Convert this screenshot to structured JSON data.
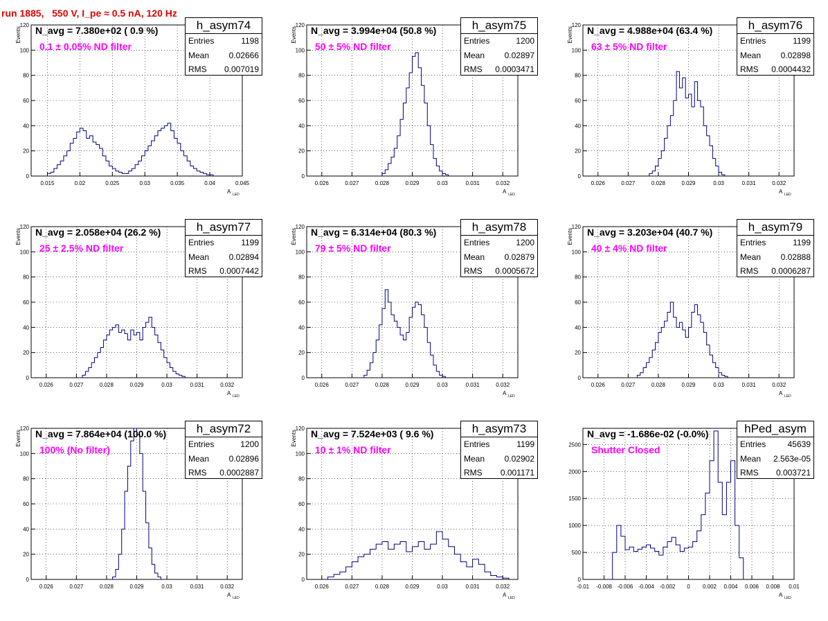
{
  "page_title": "run 1885,   550 V, I_pe ≈ 0.5 nA, 120 Hz",
  "colors": {
    "title": "#e00000",
    "histogram_line": "#000080",
    "filter_label": "#ff00ff",
    "grid": "#000000"
  },
  "chart_data": [
    {
      "type": "histogram",
      "hist_name": "h_asym74",
      "annotation": "N_avg = 7.380e+02 ( 0.9 %)",
      "filter_label": "0.1 ± 0.05% ND filter",
      "stats": {
        "entries_label": "Entries",
        "entries": "1198",
        "mean_label": "Mean",
        "mean": "0.02666",
        "rms_label": "RMS",
        "rms": "0.007019"
      },
      "xlabel": "A",
      "xlabel_sub": "LED",
      "ylabel": "Events",
      "xlim": [
        0.0125,
        0.045
      ],
      "ylim": [
        0,
        120
      ],
      "xticks": [
        0.015,
        0.02,
        0.025,
        0.03,
        0.035,
        0.04,
        0.045
      ],
      "xtick_labels": [
        "0.015",
        "0.02",
        "0.025",
        "0.03",
        "0.035",
        "0.04",
        "0.045"
      ],
      "yticks": [
        0,
        20,
        40,
        60,
        80,
        100,
        120
      ],
      "ytick_labels": [
        "0",
        "20",
        "40",
        "60",
        "80",
        "100",
        "120"
      ],
      "x": [
        0.015,
        0.0155,
        0.016,
        0.0165,
        0.017,
        0.0175,
        0.018,
        0.0185,
        0.019,
        0.0195,
        0.02,
        0.0205,
        0.021,
        0.0215,
        0.022,
        0.0225,
        0.023,
        0.0235,
        0.024,
        0.0245,
        0.025,
        0.0255,
        0.026,
        0.0265,
        0.027,
        0.0275,
        0.028,
        0.0285,
        0.029,
        0.0295,
        0.03,
        0.0305,
        0.031,
        0.0315,
        0.032,
        0.0325,
        0.033,
        0.0335,
        0.034,
        0.0345,
        0.035,
        0.0355,
        0.036,
        0.0365,
        0.037,
        0.0375,
        0.038,
        0.0385,
        0.039,
        0.0395,
        0.04
      ],
      "values": [
        2,
        3,
        6,
        9,
        12,
        16,
        20,
        26,
        30,
        35,
        38,
        36,
        30,
        32,
        27,
        25,
        22,
        16,
        12,
        8,
        6,
        4,
        3,
        2,
        2,
        4,
        6,
        9,
        12,
        16,
        20,
        24,
        28,
        32,
        36,
        38,
        40,
        42,
        36,
        30,
        26,
        20,
        16,
        12,
        8,
        6,
        4,
        3,
        2,
        1,
        1
      ]
    },
    {
      "type": "histogram",
      "hist_name": "h_asym75",
      "annotation": "N_avg = 3.994e+04 (50.8 %)",
      "filter_label": "50 ± 5% ND filter",
      "stats": {
        "entries_label": "Entries",
        "entries": "1200",
        "mean_label": "Mean",
        "mean": "0.02897",
        "rms_label": "RMS",
        "rms": "0.0003471"
      },
      "xlabel": "A",
      "xlabel_sub": "LED",
      "ylabel": "Events",
      "xlim": [
        0.0255,
        0.0325
      ],
      "ylim": [
        0,
        120
      ],
      "xticks": [
        0.026,
        0.027,
        0.028,
        0.029,
        0.03,
        0.031,
        0.032
      ],
      "xtick_labels": [
        "0.026",
        "0.027",
        "0.028",
        "0.029",
        "0.03",
        "0.031",
        "0.032"
      ],
      "yticks": [
        0,
        20,
        40,
        60,
        80,
        100,
        120
      ],
      "ytick_labels": [
        "0",
        "20",
        "40",
        "60",
        "80",
        "100",
        "120"
      ],
      "x": [
        0.028,
        0.0281,
        0.0282,
        0.0283,
        0.0284,
        0.0285,
        0.0286,
        0.0287,
        0.0288,
        0.0289,
        0.029,
        0.0291,
        0.0292,
        0.0293,
        0.0294,
        0.0295,
        0.0296,
        0.0297,
        0.0298,
        0.0299,
        0.03,
        0.0301
      ],
      "values": [
        2,
        5,
        10,
        15,
        22,
        32,
        45,
        58,
        70,
        82,
        95,
        98,
        86,
        72,
        58,
        40,
        25,
        14,
        8,
        4,
        2,
        1
      ]
    },
    {
      "type": "histogram",
      "hist_name": "h_asym76",
      "annotation": "N_avg = 4.988e+04 (63.4 %)",
      "filter_label": "63 ± 5% ND filter",
      "stats": {
        "entries_label": "Entries",
        "entries": "1199",
        "mean_label": "Mean",
        "mean": "0.02898",
        "rms_label": "RMS",
        "rms": "0.0004432"
      },
      "xlabel": "A",
      "xlabel_sub": "LED",
      "ylabel": "Events",
      "xlim": [
        0.0255,
        0.0325
      ],
      "ylim": [
        0,
        120
      ],
      "xticks": [
        0.026,
        0.027,
        0.028,
        0.029,
        0.03,
        0.031,
        0.032
      ],
      "xtick_labels": [
        "0.026",
        "0.027",
        "0.028",
        "0.029",
        "0.03",
        "0.031",
        "0.032"
      ],
      "yticks": [
        0,
        20,
        40,
        60,
        80,
        100,
        120
      ],
      "ytick_labels": [
        "0",
        "20",
        "40",
        "60",
        "80",
        "100",
        "120"
      ],
      "x": [
        0.0277,
        0.0278,
        0.0279,
        0.028,
        0.0281,
        0.0282,
        0.0283,
        0.0284,
        0.0285,
        0.0286,
        0.0287,
        0.0288,
        0.0289,
        0.029,
        0.0291,
        0.0292,
        0.0293,
        0.0294,
        0.0295,
        0.0296,
        0.0297,
        0.0298,
        0.0299,
        0.03,
        0.0301
      ],
      "values": [
        2,
        4,
        8,
        14,
        20,
        30,
        40,
        48,
        60,
        83,
        70,
        78,
        62,
        65,
        55,
        75,
        60,
        55,
        40,
        32,
        24,
        14,
        8,
        3,
        1
      ]
    },
    {
      "type": "histogram",
      "hist_name": "h_asym77",
      "annotation": "N_avg = 2.058e+04 (26.2 %)",
      "filter_label": "25 ± 2.5% ND filter",
      "stats": {
        "entries_label": "Entries",
        "entries": "1199",
        "mean_label": "Mean",
        "mean": "0.02894",
        "rms_label": "RMS",
        "rms": "0.0007442"
      },
      "xlabel": "A",
      "xlabel_sub": "LED",
      "ylabel": "Events",
      "xlim": [
        0.0255,
        0.0325
      ],
      "ylim": [
        0,
        120
      ],
      "xticks": [
        0.026,
        0.027,
        0.028,
        0.029,
        0.03,
        0.031,
        0.032
      ],
      "xtick_labels": [
        "0.026",
        "0.027",
        "0.028",
        "0.029",
        "0.03",
        "0.031",
        "0.032"
      ],
      "yticks": [
        0,
        20,
        40,
        60,
        80,
        100,
        120
      ],
      "ytick_labels": [
        "0",
        "20",
        "40",
        "60",
        "80",
        "100",
        "120"
      ],
      "x": [
        0.0272,
        0.0273,
        0.0274,
        0.0275,
        0.0276,
        0.0277,
        0.0278,
        0.0279,
        0.028,
        0.0281,
        0.0282,
        0.0283,
        0.0284,
        0.0285,
        0.0286,
        0.0287,
        0.0288,
        0.0289,
        0.029,
        0.0291,
        0.0292,
        0.0293,
        0.0294,
        0.0295,
        0.0296,
        0.0297,
        0.0298,
        0.0299,
        0.03,
        0.0301,
        0.0302,
        0.0303,
        0.0304,
        0.0305
      ],
      "values": [
        2,
        5,
        8,
        12,
        16,
        20,
        24,
        30,
        34,
        38,
        40,
        42,
        36,
        38,
        35,
        30,
        38,
        34,
        36,
        30,
        40,
        44,
        48,
        40,
        34,
        28,
        22,
        16,
        12,
        8,
        5,
        3,
        2,
        1
      ]
    },
    {
      "type": "histogram",
      "hist_name": "h_asym78",
      "annotation": "N_avg = 6.314e+04 (80.3 %)",
      "filter_label": "79 ± 5% ND filter",
      "stats": {
        "entries_label": "Entries",
        "entries": "1200",
        "mean_label": "Mean",
        "mean": "0.02879",
        "rms_label": "RMS",
        "rms": "0.0005672"
      },
      "xlabel": "A",
      "xlabel_sub": "LED",
      "ylabel": "Events",
      "xlim": [
        0.0255,
        0.0325
      ],
      "ylim": [
        0,
        120
      ],
      "xticks": [
        0.026,
        0.027,
        0.028,
        0.029,
        0.03,
        0.031,
        0.032
      ],
      "xtick_labels": [
        "0.026",
        "0.027",
        "0.028",
        "0.029",
        "0.03",
        "0.031",
        "0.032"
      ],
      "yticks": [
        0,
        20,
        40,
        60,
        80,
        100,
        120
      ],
      "ytick_labels": [
        "0",
        "20",
        "40",
        "60",
        "80",
        "100",
        "120"
      ],
      "x": [
        0.0274,
        0.0275,
        0.0276,
        0.0277,
        0.0278,
        0.0279,
        0.028,
        0.0281,
        0.0282,
        0.0283,
        0.0284,
        0.0285,
        0.0286,
        0.0287,
        0.0288,
        0.0289,
        0.029,
        0.0291,
        0.0292,
        0.0293,
        0.0294,
        0.0295,
        0.0296,
        0.0297,
        0.0298,
        0.0299,
        0.03
      ],
      "values": [
        2,
        6,
        12,
        20,
        30,
        42,
        55,
        70,
        60,
        50,
        45,
        40,
        34,
        30,
        36,
        48,
        56,
        60,
        58,
        50,
        40,
        28,
        18,
        10,
        5,
        2,
        1
      ]
    },
    {
      "type": "histogram",
      "hist_name": "h_asym79",
      "annotation": "N_avg = 3.203e+04 (40.7 %)",
      "filter_label": "40 ± 4% ND filter",
      "stats": {
        "entries_label": "Entries",
        "entries": "1199",
        "mean_label": "Mean",
        "mean": "0.02888",
        "rms_label": "RMS",
        "rms": "0.0006287"
      },
      "xlabel": "A",
      "xlabel_sub": "LED",
      "ylabel": "Events",
      "xlim": [
        0.0255,
        0.0325
      ],
      "ylim": [
        0,
        120
      ],
      "xticks": [
        0.026,
        0.027,
        0.028,
        0.029,
        0.03,
        0.031,
        0.032
      ],
      "xtick_labels": [
        "0.026",
        "0.027",
        "0.028",
        "0.029",
        "0.03",
        "0.031",
        "0.032"
      ],
      "yticks": [
        0,
        20,
        40,
        60,
        80,
        100,
        120
      ],
      "ytick_labels": [
        "0",
        "20",
        "40",
        "60",
        "80",
        "100",
        "120"
      ],
      "x": [
        0.0273,
        0.0274,
        0.0275,
        0.0276,
        0.0277,
        0.0278,
        0.0279,
        0.028,
        0.0281,
        0.0282,
        0.0283,
        0.0284,
        0.0285,
        0.0286,
        0.0287,
        0.0288,
        0.0289,
        0.029,
        0.0291,
        0.0292,
        0.0293,
        0.0294,
        0.0295,
        0.0296,
        0.0297,
        0.0298,
        0.0299,
        0.03,
        0.0301,
        0.0302
      ],
      "values": [
        2,
        4,
        8,
        12,
        16,
        22,
        28,
        36,
        40,
        45,
        52,
        60,
        48,
        40,
        44,
        38,
        32,
        40,
        52,
        58,
        50,
        44,
        36,
        26,
        18,
        12,
        8,
        4,
        2,
        1
      ]
    },
    {
      "type": "histogram",
      "hist_name": "h_asym72",
      "annotation": "N_avg = 7.864e+04 (100.0 %)",
      "filter_label": "100% (No filter)",
      "stats": {
        "entries_label": "Entries",
        "entries": "1200",
        "mean_label": "Mean",
        "mean": "0.02896",
        "rms_label": "RMS",
        "rms": "0.0002887"
      },
      "xlabel": "A",
      "xlabel_sub": "LED",
      "ylabel": "Events",
      "xlim": [
        0.0255,
        0.0325
      ],
      "ylim": [
        0,
        120
      ],
      "xticks": [
        0.026,
        0.027,
        0.028,
        0.029,
        0.03,
        0.031,
        0.032
      ],
      "xtick_labels": [
        "0.026",
        "0.027",
        "0.028",
        "0.029",
        "0.03",
        "0.031",
        "0.032"
      ],
      "yticks": [
        0,
        20,
        40,
        60,
        80,
        100,
        120
      ],
      "ytick_labels": [
        "0",
        "20",
        "40",
        "60",
        "80",
        "100",
        "120"
      ],
      "x": [
        0.0282,
        0.0283,
        0.0284,
        0.0285,
        0.0286,
        0.0287,
        0.0288,
        0.0289,
        0.029,
        0.0291,
        0.0292,
        0.0293,
        0.0294,
        0.0295,
        0.0296,
        0.0297
      ],
      "values": [
        2,
        8,
        20,
        40,
        70,
        90,
        110,
        125,
        115,
        100,
        70,
        45,
        25,
        12,
        5,
        2
      ]
    },
    {
      "type": "histogram",
      "hist_name": "h_asym73",
      "annotation": "N_avg = 7.524e+03 ( 9.6 %)",
      "filter_label": "10 ± 1% ND filter",
      "stats": {
        "entries_label": "Entries",
        "entries": "1199",
        "mean_label": "Mean",
        "mean": "0.02902",
        "rms_label": "RMS",
        "rms": "0.001171"
      },
      "xlabel": "A",
      "xlabel_sub": "LED",
      "ylabel": "Events",
      "xlim": [
        0.0255,
        0.0325
      ],
      "ylim": [
        0,
        120
      ],
      "xticks": [
        0.026,
        0.027,
        0.028,
        0.029,
        0.03,
        0.031,
        0.032
      ],
      "xtick_labels": [
        "0.026",
        "0.027",
        "0.028",
        "0.029",
        "0.03",
        "0.031",
        "0.032"
      ],
      "yticks": [
        0,
        20,
        40,
        60,
        80,
        100,
        120
      ],
      "ytick_labels": [
        "0",
        "20",
        "40",
        "60",
        "80",
        "100",
        "120"
      ],
      "x": [
        0.0262,
        0.0264,
        0.0266,
        0.0268,
        0.027,
        0.0272,
        0.0274,
        0.0276,
        0.0278,
        0.028,
        0.0282,
        0.0284,
        0.0286,
        0.0288,
        0.029,
        0.0292,
        0.0294,
        0.0296,
        0.0298,
        0.03,
        0.0302,
        0.0304,
        0.0306,
        0.0308,
        0.031,
        0.0312,
        0.0314,
        0.0316,
        0.0318,
        0.032
      ],
      "values": [
        2,
        4,
        6,
        10,
        14,
        18,
        20,
        24,
        28,
        30,
        24,
        28,
        30,
        22,
        26,
        30,
        24,
        28,
        38,
        32,
        26,
        20,
        14,
        10,
        16,
        12,
        6,
        3,
        2,
        1
      ]
    },
    {
      "type": "histogram",
      "hist_name": "hPed_asym",
      "annotation": "N_avg = -1.686e-02 (-0.0%)",
      "filter_label": "Shutter Closed",
      "stats": {
        "entries_label": "Entries",
        "entries": "45639",
        "mean_label": "Mean",
        "mean": "2.563e-05",
        "rms_label": "RMS",
        "rms": "0.003721"
      },
      "xlabel": "A",
      "xlabel_sub": "LED",
      "ylabel": "",
      "xlim": [
        -0.01,
        0.01
      ],
      "ylim": [
        0,
        2800
      ],
      "xticks": [
        -0.01,
        -0.008,
        -0.006,
        -0.004,
        -0.002,
        0,
        0.002,
        0.004,
        0.006,
        0.008,
        0.01
      ],
      "xtick_labels": [
        "-0.01",
        "-0.008",
        "-0.006",
        "-0.004",
        "-0.002",
        "0",
        "0.002",
        "0.004",
        "0.006",
        "0.008",
        "0.01"
      ],
      "yticks": [
        0,
        500,
        1000,
        1500,
        2000,
        2500
      ],
      "ytick_labels": [
        "0",
        "500",
        "1000",
        "1500",
        "2000",
        "2500"
      ],
      "x": [
        -0.0072,
        -0.0068,
        -0.0064,
        -0.006,
        -0.0056,
        -0.0052,
        -0.0048,
        -0.0044,
        -0.004,
        -0.0036,
        -0.0032,
        -0.0028,
        -0.0024,
        -0.002,
        -0.0016,
        -0.0012,
        -0.0008,
        -0.0004,
        0,
        0.0004,
        0.0008,
        0.0012,
        0.0016,
        0.002,
        0.0024,
        0.0028,
        0.0032,
        0.0036,
        0.004,
        0.0044,
        0.0048
      ],
      "values": [
        500,
        1000,
        800,
        550,
        600,
        520,
        560,
        600,
        640,
        580,
        520,
        450,
        600,
        700,
        780,
        640,
        520,
        580,
        600,
        700,
        900,
        1200,
        1600,
        2200,
        2750,
        1800,
        1200,
        1800,
        2200,
        1000,
        400
      ]
    }
  ]
}
